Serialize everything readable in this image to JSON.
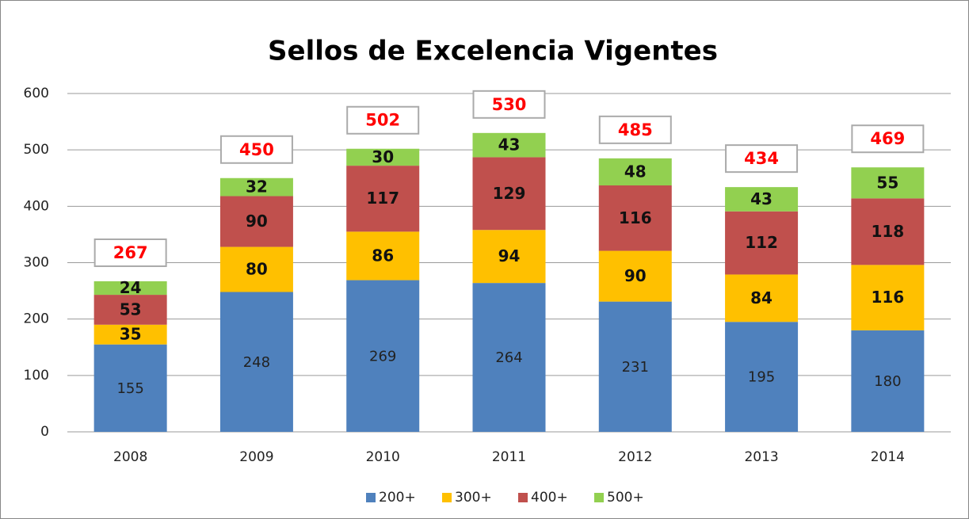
{
  "chart_data": {
    "type": "stacked_bar",
    "title": "Sellos de Excelencia Vigentes",
    "categories": [
      "2008",
      "2009",
      "2010",
      "2011",
      "2012",
      "2013",
      "2014"
    ],
    "series": [
      {
        "name": "200+",
        "color": "#4f81bd",
        "values": [
          155,
          248,
          269,
          264,
          231,
          195,
          180
        ]
      },
      {
        "name": "300+",
        "color": "#ffc000",
        "values": [
          35,
          80,
          86,
          94,
          90,
          84,
          116
        ]
      },
      {
        "name": "400+",
        "color": "#c0504d",
        "values": [
          53,
          90,
          117,
          129,
          116,
          112,
          118
        ]
      },
      {
        "name": "500+",
        "color": "#92d050",
        "values": [
          24,
          32,
          30,
          43,
          48,
          43,
          55
        ]
      }
    ],
    "totals": [
      267,
      450,
      502,
      530,
      485,
      434,
      469
    ],
    "ylim": [
      0,
      600
    ],
    "yticks": [
      0,
      100,
      200,
      300,
      400,
      500,
      600
    ],
    "grid": true,
    "legend": "bottom"
  }
}
